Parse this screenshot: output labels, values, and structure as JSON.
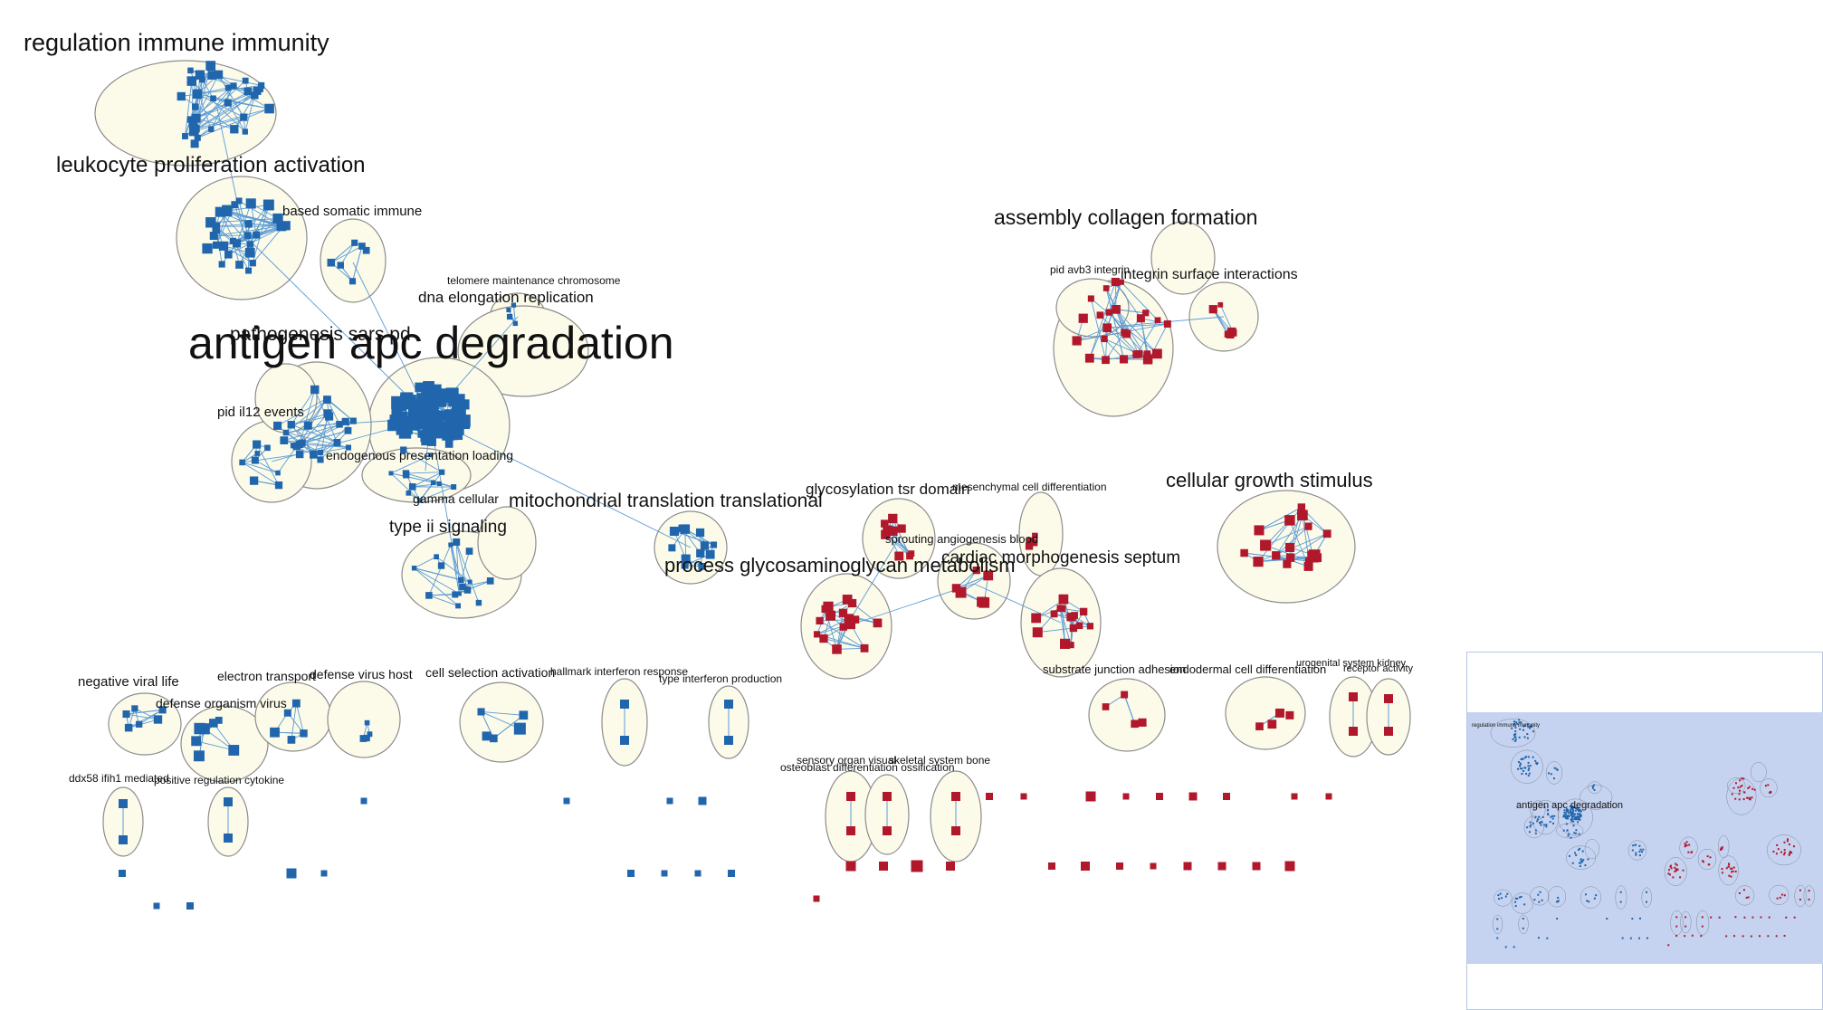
{
  "colors": {
    "blue_node": "#2166ac",
    "red_node": "#b2182b",
    "edge": "#5b9bd5",
    "cluster_fill": "#fcfbea",
    "cluster_stroke": "#8c8c8c"
  },
  "labels": {
    "regulation_immune": "regulation immune immunity",
    "leukocyte": "leukocyte proliferation activation",
    "based_somatic": "based somatic immune",
    "telomere": "telomere maintenance chromosome",
    "dna_elongation": "dna elongation replication",
    "pathogenesis": "pathogenesis sars pd",
    "antigen": "antigen apc degradation",
    "pid_il12": "pid il12 events",
    "endogenous": "endogenous presentation loading",
    "gamma": "gamma cellular",
    "mitochondrial": "mitochondrial translation translational",
    "type_ii": "type ii signaling",
    "glycosylation": "glycosylation tsr domain",
    "mesenchymal": "mesenchymal cell differentiation",
    "sprouting": "sprouting angiogenesis blood",
    "process_gag": "process glycosaminoglycan metabolism",
    "cardiac": "cardiac morphogenesis septum",
    "cellular_growth": "cellular growth stimulus",
    "assembly_collagen": "assembly collagen formation",
    "pid_avb3": "pid avb3 integrin",
    "integrin_surface": "integrin surface interactions",
    "negative_viral": "negative viral life",
    "electron": "electron transport",
    "defense_virus": "defense virus host",
    "defense_organism": "defense organism virus",
    "cell_selection": "cell selection activation",
    "hallmark": "hallmark interferon response",
    "type_interferon": "type interferon production",
    "ddx58": "ddx58 ifih1 mediated",
    "positive_reg": "positive regulation cytokine",
    "sensory_organ": "sensory organ visual",
    "skeletal": "skeletal system bone",
    "osteoblast": "osteoblast differentiation ossification",
    "substrate": "substrate junction adhesion",
    "endodermal": "endodermal cell differentiation",
    "urogenital": "urogenital system kidney",
    "receptor": "receptor activity"
  },
  "minimap": {
    "label_regulation": "regulation immune immunity",
    "label_antigen": "antigen apc degradation"
  }
}
